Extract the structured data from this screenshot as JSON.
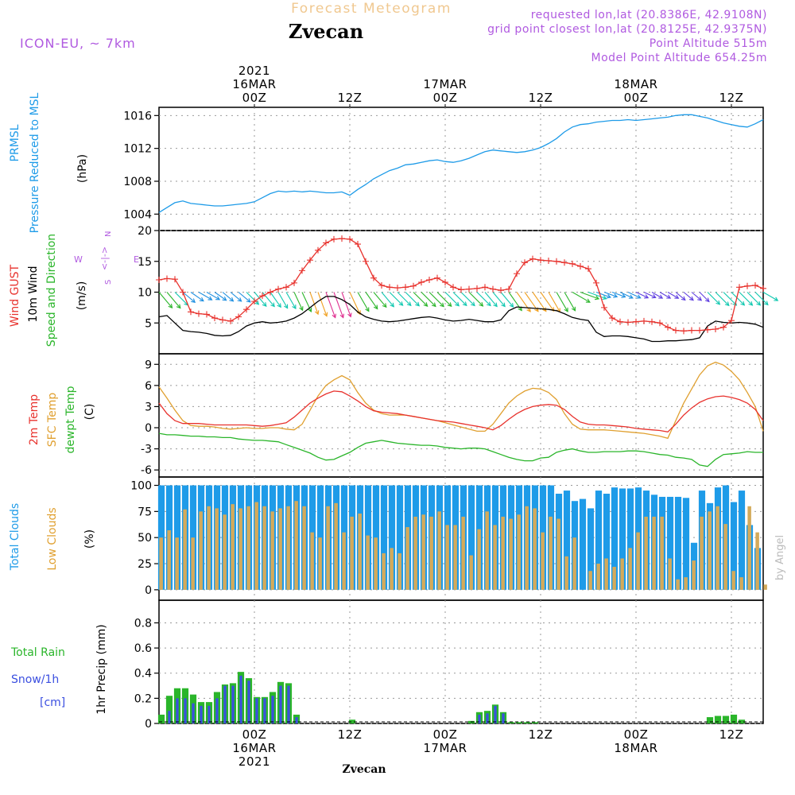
{
  "header": {
    "title": "Forecast Meteogram",
    "location": "Zvecan",
    "model": "ICON-EU, ~ 7km",
    "requested": "requested lon,lat (20.8386E, 42.9108N)",
    "gridpoint": "grid point closest lon,lat (20.8125E, 42.9375N)",
    "point_alt": "Point Altitude 515m",
    "model_alt": "Model Point Altitude 654.25m",
    "footer": "Zvecan",
    "watermark": "by Angel"
  },
  "time_axis": {
    "top_labels": [
      {
        "t": 12,
        "lines": [
          "2021",
          "16MAR",
          "00Z"
        ]
      },
      {
        "t": 24,
        "lines": [
          "12Z"
        ]
      },
      {
        "t": 36,
        "lines": [
          "17MAR",
          "00Z"
        ]
      },
      {
        "t": 48,
        "lines": [
          "12Z"
        ]
      },
      {
        "t": 60,
        "lines": [
          "18MAR",
          "00Z"
        ]
      },
      {
        "t": 72,
        "lines": [
          "12Z"
        ]
      }
    ],
    "bottom_labels": [
      {
        "t": 12,
        "lines": [
          "00Z",
          "16MAR",
          "2021"
        ]
      },
      {
        "t": 24,
        "lines": [
          "12Z"
        ]
      },
      {
        "t": 36,
        "lines": [
          "00Z",
          "17MAR"
        ]
      },
      {
        "t": 48,
        "lines": [
          "12Z"
        ]
      },
      {
        "t": 60,
        "lines": [
          "00Z",
          "18MAR"
        ]
      },
      {
        "t": 72,
        "lines": [
          "12Z"
        ]
      }
    ]
  },
  "panels": {
    "pressure": {
      "labels": [
        {
          "text": "PRMSL",
          "color": "#1e9be8"
        },
        {
          "text": "Pressure Reduced to MSL",
          "color": "#1e9be8"
        },
        {
          "text": "(hPa)",
          "color": "#000000"
        }
      ],
      "ticks": [
        1004,
        1008,
        1012,
        1016
      ]
    },
    "wind": {
      "labels": [
        {
          "text": "Wind GUST",
          "color": "#e8322d"
        },
        {
          "text": "10m Wind",
          "color": "#000000"
        },
        {
          "text": "Speed and Direction",
          "color": "#2ab52a"
        },
        {
          "text": "(m/s)",
          "color": "#000000"
        }
      ],
      "ticks": [
        5,
        10,
        15,
        20
      ],
      "compass": {
        "top": "N",
        "left": "W",
        "right": "E",
        "bottom": "S",
        "mid": "<-|->"
      }
    },
    "temp": {
      "labels": [
        {
          "text": "2m Temp",
          "color": "#e8322d"
        },
        {
          "text": "SFC Temp",
          "color": "#e0a030"
        },
        {
          "text": "dewpt Temp",
          "color": "#2ab52a"
        },
        {
          "text": "(C)",
          "color": "#000000"
        }
      ],
      "ticks": [
        -6,
        -3,
        0,
        3,
        6,
        9
      ]
    },
    "clouds": {
      "labels": [
        {
          "text": "Total Clouds",
          "color": "#1e9be8"
        },
        {
          "text": "Low Clouds",
          "color": "#e0a030"
        },
        {
          "text": "(%)",
          "color": "#000000"
        }
      ],
      "ticks": [
        0,
        25,
        50,
        75,
        100
      ]
    },
    "precip": {
      "labels": [
        {
          "text": "Total   Rain",
          "color": "#2ab52a"
        },
        {
          "text": "Snow/1h",
          "color": "#3b4fe0"
        },
        {
          "text": "[cm]",
          "color": "#3b4fe0"
        },
        {
          "text": "1hr Precip (mm)",
          "color": "#000000"
        }
      ],
      "ticks": [
        0,
        0.2,
        0.4,
        0.6,
        0.8
      ]
    }
  },
  "chart_data": {
    "type": "line",
    "hours": [
      0,
      1,
      2,
      3,
      4,
      5,
      6,
      7,
      8,
      9,
      10,
      11,
      12,
      13,
      14,
      15,
      16,
      17,
      18,
      19,
      20,
      21,
      22,
      23,
      24,
      25,
      26,
      27,
      28,
      29,
      30,
      31,
      32,
      33,
      34,
      35,
      36,
      37,
      38,
      39,
      40,
      41,
      42,
      43,
      44,
      45,
      46,
      47,
      48,
      49,
      50,
      51,
      52,
      53,
      54,
      55,
      56,
      57,
      58,
      59,
      60,
      61,
      62,
      63,
      64,
      65,
      66,
      67,
      68,
      69,
      70,
      71,
      72,
      73,
      74,
      75,
      76
    ],
    "pressure_hpa": [
      1004.2,
      1004.8,
      1005.4,
      1005.6,
      1005.3,
      1005.2,
      1005.1,
      1005.0,
      1005.0,
      1005.1,
      1005.2,
      1005.3,
      1005.5,
      1006.0,
      1006.5,
      1006.8,
      1006.7,
      1006.8,
      1006.7,
      1006.8,
      1006.7,
      1006.6,
      1006.6,
      1006.7,
      1006.3,
      1007.0,
      1007.6,
      1008.3,
      1008.8,
      1009.3,
      1009.6,
      1010.0,
      1010.1,
      1010.3,
      1010.5,
      1010.6,
      1010.4,
      1010.3,
      1010.5,
      1010.8,
      1011.2,
      1011.6,
      1011.8,
      1011.7,
      1011.6,
      1011.5,
      1011.6,
      1011.8,
      1012.1,
      1012.6,
      1013.2,
      1014.0,
      1014.6,
      1014.9,
      1015.0,
      1015.2,
      1015.3,
      1015.4,
      1015.4,
      1015.5,
      1015.4,
      1015.5,
      1015.6,
      1015.7,
      1015.8,
      1016.0,
      1016.1,
      1016.1,
      1015.9,
      1015.7,
      1015.4,
      1015.1,
      1014.9,
      1014.7,
      1014.6,
      1015.0,
      1015.5
    ],
    "wind_gust_ms": [
      12.0,
      12.2,
      12.1,
      10.0,
      6.8,
      6.5,
      6.4,
      5.8,
      5.5,
      5.3,
      6.0,
      7.2,
      8.5,
      9.4,
      10.0,
      10.5,
      10.8,
      11.5,
      13.5,
      15.2,
      16.8,
      18.0,
      18.6,
      18.7,
      18.6,
      17.8,
      15.0,
      12.3,
      11.1,
      10.8,
      10.7,
      10.8,
      11.0,
      11.6,
      12.0,
      12.3,
      11.6,
      10.8,
      10.4,
      10.5,
      10.6,
      10.8,
      10.5,
      10.3,
      10.5,
      13.0,
      14.8,
      15.4,
      15.2,
      15.1,
      15.0,
      14.8,
      14.6,
      14.2,
      13.8,
      11.5,
      7.5,
      5.8,
      5.2,
      5.1,
      5.2,
      5.3,
      5.2,
      5.0,
      4.3,
      3.8,
      3.7,
      3.8,
      3.8,
      3.9,
      4.0,
      4.3,
      5.4,
      10.8,
      11.0,
      11.1,
      10.6
    ],
    "wind_10m_ms": [
      6.0,
      6.2,
      5.0,
      3.8,
      3.6,
      3.5,
      3.3,
      3.0,
      2.9,
      3.0,
      3.6,
      4.5,
      5.0,
      5.2,
      5.0,
      5.1,
      5.3,
      5.8,
      6.5,
      7.5,
      8.5,
      9.3,
      9.3,
      8.8,
      8.0,
      6.8,
      6.0,
      5.6,
      5.3,
      5.2,
      5.3,
      5.5,
      5.7,
      5.9,
      6.0,
      5.8,
      5.5,
      5.3,
      5.4,
      5.6,
      5.4,
      5.2,
      5.2,
      5.5,
      7.0,
      7.6,
      7.5,
      7.4,
      7.3,
      7.2,
      7.0,
      6.5,
      5.9,
      5.6,
      5.4,
      3.5,
      2.8,
      2.9,
      2.9,
      2.8,
      2.6,
      2.4,
      2.0,
      2.0,
      2.1,
      2.1,
      2.2,
      2.3,
      2.6,
      4.5,
      5.3,
      5.1,
      5.0,
      5.1,
      5.0,
      4.8,
      4.3
    ],
    "wind_dir_deg": [
      320,
      320,
      315,
      310,
      305,
      300,
      300,
      305,
      310,
      310,
      310,
      315,
      320,
      320,
      325,
      330,
      330,
      335,
      335,
      340,
      340,
      340,
      340,
      340,
      335,
      330,
      325,
      320,
      320,
      315,
      315,
      315,
      315,
      315,
      315,
      315,
      315,
      315,
      315,
      315,
      315,
      320,
      320,
      320,
      325,
      325,
      325,
      325,
      325,
      330,
      330,
      330,
      300,
      290,
      290,
      290,
      290,
      290,
      295,
      295,
      295,
      295,
      300,
      300,
      300,
      310,
      310,
      310,
      315,
      315,
      315,
      315,
      315,
      315,
      315,
      315,
      300
    ],
    "temp_2m_c": [
      3.5,
      2.0,
      1.0,
      0.6,
      0.6,
      0.6,
      0.5,
      0.4,
      0.4,
      0.4,
      0.4,
      0.4,
      0.3,
      0.2,
      0.3,
      0.5,
      0.7,
      1.5,
      2.5,
      3.5,
      4.2,
      4.8,
      5.2,
      5.1,
      4.5,
      3.8,
      3.0,
      2.4,
      2.2,
      2.1,
      2.0,
      1.8,
      1.6,
      1.4,
      1.2,
      1.0,
      0.9,
      0.8,
      0.6,
      0.4,
      0.2,
      0.0,
      -0.3,
      0.3,
      1.2,
      2.0,
      2.6,
      3.0,
      3.2,
      3.3,
      3.2,
      2.6,
      1.6,
      0.8,
      0.5,
      0.4,
      0.4,
      0.3,
      0.2,
      0.1,
      -0.1,
      -0.2,
      -0.3,
      -0.4,
      -0.6,
      0.5,
      1.8,
      2.8,
      3.6,
      4.1,
      4.4,
      4.5,
      4.3,
      4.0,
      3.5,
      2.6,
      1.0
    ],
    "temp_sfc_c": [
      5.8,
      4.2,
      2.5,
      1.0,
      0.3,
      0.2,
      0.2,
      0.1,
      -0.1,
      -0.2,
      -0.1,
      0.0,
      -0.1,
      -0.1,
      0.0,
      0.0,
      -0.2,
      -0.3,
      0.5,
      2.5,
      4.5,
      6.0,
      6.8,
      7.4,
      6.8,
      5.0,
      3.5,
      2.5,
      2.0,
      1.8,
      1.8,
      1.8,
      1.6,
      1.4,
      1.2,
      1.0,
      0.7,
      0.4,
      0.1,
      -0.2,
      -0.5,
      -0.5,
      0.5,
      2.0,
      3.5,
      4.5,
      5.2,
      5.6,
      5.5,
      5.0,
      4.0,
      2.0,
      0.5,
      -0.2,
      -0.3,
      -0.3,
      -0.3,
      -0.4,
      -0.5,
      -0.6,
      -0.7,
      -0.8,
      -1.0,
      -1.2,
      -1.5,
      1.0,
      3.5,
      5.5,
      7.5,
      8.8,
      9.3,
      8.9,
      8.0,
      6.8,
      5.0,
      3.0,
      -0.5
    ],
    "dewpt_c": [
      -0.8,
      -1.0,
      -1.0,
      -1.1,
      -1.2,
      -1.2,
      -1.3,
      -1.3,
      -1.4,
      -1.4,
      -1.6,
      -1.7,
      -1.8,
      -1.8,
      -1.9,
      -2.0,
      -2.4,
      -2.8,
      -3.2,
      -3.6,
      -4.2,
      -4.6,
      -4.5,
      -4.0,
      -3.5,
      -2.8,
      -2.2,
      -2.0,
      -1.8,
      -2.0,
      -2.2,
      -2.3,
      -2.4,
      -2.5,
      -2.5,
      -2.6,
      -2.8,
      -2.9,
      -3.0,
      -2.9,
      -2.9,
      -3.0,
      -3.4,
      -3.8,
      -4.2,
      -4.5,
      -4.7,
      -4.7,
      -4.3,
      -4.2,
      -3.5,
      -3.2,
      -3.0,
      -3.3,
      -3.5,
      -3.5,
      -3.4,
      -3.4,
      -3.4,
      -3.3,
      -3.3,
      -3.4,
      -3.6,
      -3.8,
      -3.9,
      -4.2,
      -4.3,
      -4.5,
      -5.3,
      -5.5,
      -4.5,
      -3.8,
      -3.7,
      -3.6,
      -3.4,
      -3.5,
      -3.5
    ],
    "total_cloud_pct": [
      100,
      100,
      100,
      100,
      100,
      100,
      100,
      100,
      100,
      100,
      100,
      100,
      100,
      100,
      100,
      100,
      100,
      100,
      100,
      100,
      100,
      100,
      100,
      100,
      100,
      100,
      100,
      100,
      100,
      100,
      100,
      100,
      100,
      100,
      100,
      100,
      100,
      100,
      100,
      100,
      100,
      100,
      100,
      100,
      100,
      100,
      100,
      100,
      100,
      100,
      92,
      95,
      85,
      87,
      78,
      95,
      92,
      98,
      97,
      97,
      98,
      95,
      91,
      89,
      89,
      89,
      88,
      45,
      95,
      83,
      98,
      100,
      84,
      95,
      62,
      40,
      0
    ],
    "low_cloud_pct": [
      50,
      57,
      50,
      77,
      50,
      75,
      80,
      78,
      72,
      82,
      78,
      80,
      84,
      80,
      75,
      78,
      80,
      85,
      80,
      55,
      50,
      80,
      83,
      55,
      70,
      73,
      52,
      50,
      35,
      40,
      35,
      60,
      70,
      72,
      70,
      75,
      62,
      62,
      70,
      33,
      58,
      75,
      62,
      70,
      68,
      72,
      80,
      78,
      55,
      70,
      68,
      32,
      50,
      0,
      18,
      25,
      30,
      22,
      30,
      40,
      55,
      70,
      70,
      70,
      30,
      10,
      12,
      28,
      70,
      75,
      80,
      63,
      18,
      12,
      80,
      55,
      5
    ]
  },
  "precip_data": {
    "rain_mm": [
      0.07,
      0.22,
      0.28,
      0.28,
      0.23,
      0.17,
      0.17,
      0.25,
      0.31,
      0.32,
      0.41,
      0.36,
      0.21,
      0.21,
      0.25,
      0.33,
      0.32,
      0.07,
      0,
      0,
      0,
      0,
      0,
      0,
      0.03,
      0,
      0,
      0,
      0,
      0,
      0,
      0,
      0,
      0,
      0,
      0,
      0,
      0,
      0,
      0.02,
      0.09,
      0.1,
      0.15,
      0.09,
      0.01,
      0.01,
      0.01,
      0.01,
      0,
      0,
      0,
      0,
      0,
      0,
      0,
      0,
      0,
      0,
      0,
      0,
      0,
      0,
      0,
      0,
      0,
      0,
      0,
      0,
      0,
      0.05,
      0.06,
      0.06,
      0.07,
      0.03,
      0,
      0,
      0
    ],
    "snow_cm": [
      0,
      0.1,
      0.2,
      0.2,
      0.16,
      0.14,
      0.14,
      0.2,
      0.3,
      0.3,
      0.38,
      0.34,
      0.2,
      0.2,
      0.22,
      0.3,
      0.3,
      0.05,
      0,
      0,
      0,
      0,
      0,
      0,
      0,
      0,
      0,
      0,
      0,
      0,
      0,
      0,
      0,
      0,
      0,
      0,
      0,
      0,
      0,
      0,
      0.07,
      0.08,
      0.14,
      0.08,
      0,
      0,
      0,
      0,
      0,
      0,
      0,
      0,
      0,
      0,
      0,
      0,
      0,
      0,
      0,
      0,
      0,
      0,
      0,
      0,
      0,
      0,
      0,
      0,
      0,
      0,
      0,
      0,
      0,
      0,
      0,
      0,
      0
    ]
  },
  "colors": {
    "pressure": "#1e9be8",
    "gust": "#e8322d",
    "wind10": "#000000",
    "temp2m": "#e8322d",
    "tempsfc": "#e0a030",
    "dewpt": "#2ab52a",
    "total_cloud": "#1e9be8",
    "low_cloud": "#d4aa5a",
    "rain": "#2ab52a",
    "snow": "#3b4fe0",
    "title_orange": "#f0c890",
    "purple": "#b05ae0"
  }
}
